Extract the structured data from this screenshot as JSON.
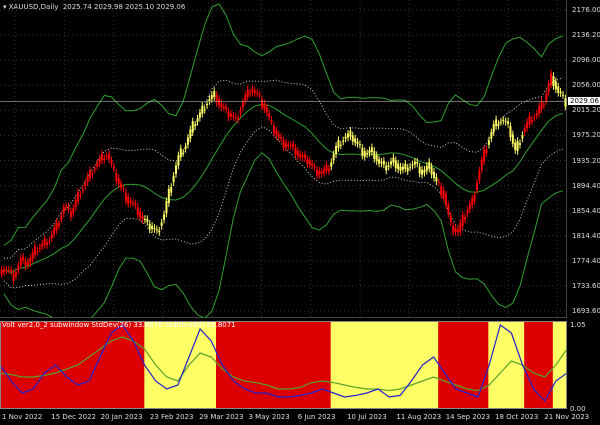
{
  "header": {
    "symbol": "XAUUSD,Daily",
    "ohlc": "2025.74 2029.98 2025.10 2029.06"
  },
  "subwindow": {
    "label": "Volt ver2.0_2 subwindow  StdDev(26) 33.6676  StdDev(60) 65.8071",
    "y_max": "1.05",
    "y_min": "0.00"
  },
  "current_price": "2029.06",
  "colors": {
    "bull": "#ff0000",
    "bear": "#ffff66",
    "band": "#2ea02e",
    "inner": "#cccccc",
    "regime_red": "#dd0000",
    "regime_yellow": "#ffff66",
    "line_blue": "#2222cc",
    "line_green": "#5aa02a"
  },
  "chart_data": {
    "type": "candlestick",
    "y_ticks": [
      "2176.00",
      "2136.20",
      "2096.00",
      "2056.00",
      "2015.20",
      "1975.20",
      "1935.20",
      "1894.40",
      "1854.40",
      "1814.40",
      "1774.40",
      "1733.60",
      "1693.60"
    ],
    "x_ticks": [
      "1 Nov 2022",
      "15 Dec 2022",
      "20 Jan 2023",
      "23 Feb 2023",
      "29 Mar 2023",
      "3 May 2023",
      "6 Jun 2023",
      "10 Jul 2023",
      "11 Aug 2023",
      "14 Sep 2023",
      "18 Oct 2023",
      "21 Nov 2023"
    ],
    "ylim": [
      1693.6,
      2176
    ],
    "closes": [
      1760,
      1750,
      1775,
      1770,
      1790,
      1800,
      1810,
      1830,
      1860,
      1850,
      1880,
      1900,
      1920,
      1935,
      1945,
      1915,
      1890,
      1870,
      1860,
      1840,
      1830,
      1820,
      1850,
      1900,
      1940,
      1960,
      1990,
      2010,
      2030,
      2040,
      2020,
      2010,
      2000,
      2030,
      2050,
      2040,
      2020,
      1990,
      1970,
      1960,
      1955,
      1940,
      1935,
      1920,
      1915,
      1925,
      1955,
      1970,
      1975,
      1960,
      1945,
      1950,
      1930,
      1925,
      1935,
      1920,
      1925,
      1930,
      1915,
      1925,
      1900,
      1880,
      1830,
      1820,
      1850,
      1870,
      1920,
      1960,
      1990,
      2000,
      1990,
      1950,
      1980,
      2000,
      2010,
      2030,
      2070,
      2045,
      2029
    ],
    "regimes": [
      [
        "red",
        0,
        20
      ],
      [
        "yellow",
        20,
        30
      ],
      [
        "red",
        30,
        46
      ],
      [
        "yellow",
        46,
        61
      ],
      [
        "red",
        61,
        68
      ],
      [
        "yellow",
        68,
        73
      ],
      [
        "red",
        73,
        77
      ],
      [
        "yellow",
        77,
        84
      ],
      [
        "red",
        84,
        93
      ],
      [
        "yellow",
        93,
        95
      ],
      [
        "red",
        95,
        97
      ],
      [
        "yellow",
        97,
        99
      ]
    ],
    "blue_line": [
      0.5,
      0.3,
      0.15,
      0.2,
      0.4,
      0.5,
      0.35,
      0.25,
      0.3,
      0.6,
      0.9,
      1.0,
      0.8,
      0.5,
      0.3,
      0.2,
      0.25,
      0.6,
      0.95,
      0.8,
      0.5,
      0.3,
      0.2,
      0.15,
      0.15,
      0.1,
      0.1,
      0.12,
      0.15,
      0.2,
      0.15,
      0.1,
      0.12,
      0.15,
      0.2,
      0.1,
      0.12,
      0.3,
      0.5,
      0.6,
      0.4,
      0.2,
      0.15,
      0.1,
      0.5,
      1.0,
      0.9,
      0.5,
      0.2,
      0.05,
      0.3,
      0.4
    ],
    "green_line": [
      0.4,
      0.38,
      0.35,
      0.35,
      0.37,
      0.4,
      0.45,
      0.5,
      0.6,
      0.7,
      0.8,
      0.85,
      0.8,
      0.7,
      0.5,
      0.35,
      0.3,
      0.5,
      0.65,
      0.6,
      0.45,
      0.35,
      0.3,
      0.28,
      0.25,
      0.2,
      0.2,
      0.22,
      0.28,
      0.3,
      0.28,
      0.25,
      0.22,
      0.2,
      0.2,
      0.18,
      0.2,
      0.25,
      0.3,
      0.35,
      0.3,
      0.25,
      0.2,
      0.18,
      0.25,
      0.4,
      0.55,
      0.5,
      0.4,
      0.35,
      0.5,
      0.7
    ]
  }
}
